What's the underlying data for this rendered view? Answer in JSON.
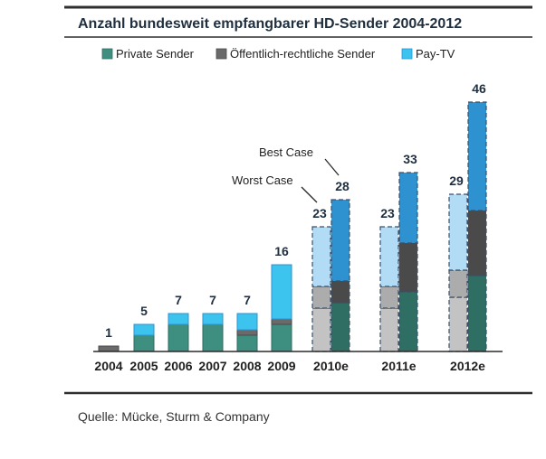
{
  "chart_data": {
    "type": "bar",
    "title": "Anzahl bundesweit empfangbarer HD-Sender 2004-2012",
    "legend": [
      "Private Sender",
      "Öffentlich-rechtliche Sender",
      "Pay-TV"
    ],
    "legend_position": "top",
    "grid": false,
    "colors": {
      "private": "#3f8f80",
      "public": "#6a6a6a",
      "paytv": "#3cc4ee",
      "private_light": "#c3c3c3",
      "public_light": "#acacac",
      "paytv_light": "#b2dcf6",
      "private_dark": "#2f6e63",
      "public_dark": "#4a4a4a",
      "paytv_dark": "#2e92d0"
    },
    "actual": {
      "categories": [
        "2004",
        "2005",
        "2006",
        "2007",
        "2008",
        "2009"
      ],
      "series": [
        {
          "name": "Private Sender",
          "values": [
            0,
            3,
            5,
            5,
            3,
            5
          ]
        },
        {
          "name": "Öffentlich-rechtliche Sender",
          "values": [
            1,
            0,
            0,
            0,
            1,
            1
          ]
        },
        {
          "name": "Pay-TV",
          "values": [
            0,
            2,
            2,
            2,
            3,
            10
          ]
        }
      ],
      "totals": [
        "1",
        "5",
        "7",
        "7",
        "7",
        "16"
      ]
    },
    "forecast": {
      "categories": [
        "2010e",
        "2011e",
        "2012e"
      ],
      "worst_case": {
        "label": "Worst Case",
        "series": [
          {
            "name": "Private Sender",
            "values": [
              8,
              8,
              10
            ]
          },
          {
            "name": "Öffentlich-rechtliche Sender",
            "values": [
              4,
              4,
              5
            ]
          },
          {
            "name": "Pay-TV",
            "values": [
              11,
              11,
              14
            ]
          }
        ],
        "totals": [
          "23",
          "23",
          "29"
        ]
      },
      "best_case": {
        "label": "Best Case",
        "series": [
          {
            "name": "Private Sender",
            "values": [
              9,
              11,
              14
            ]
          },
          {
            "name": "Öffentlich-rechtliche Sender",
            "values": [
              4,
              9,
              12
            ]
          },
          {
            "name": "Pay-TV",
            "values": [
              15,
              13,
              20
            ]
          }
        ],
        "totals": [
          "28",
          "33",
          "46"
        ]
      }
    }
  },
  "footer": {
    "source": "Quelle: Mücke, Sturm & Company"
  }
}
